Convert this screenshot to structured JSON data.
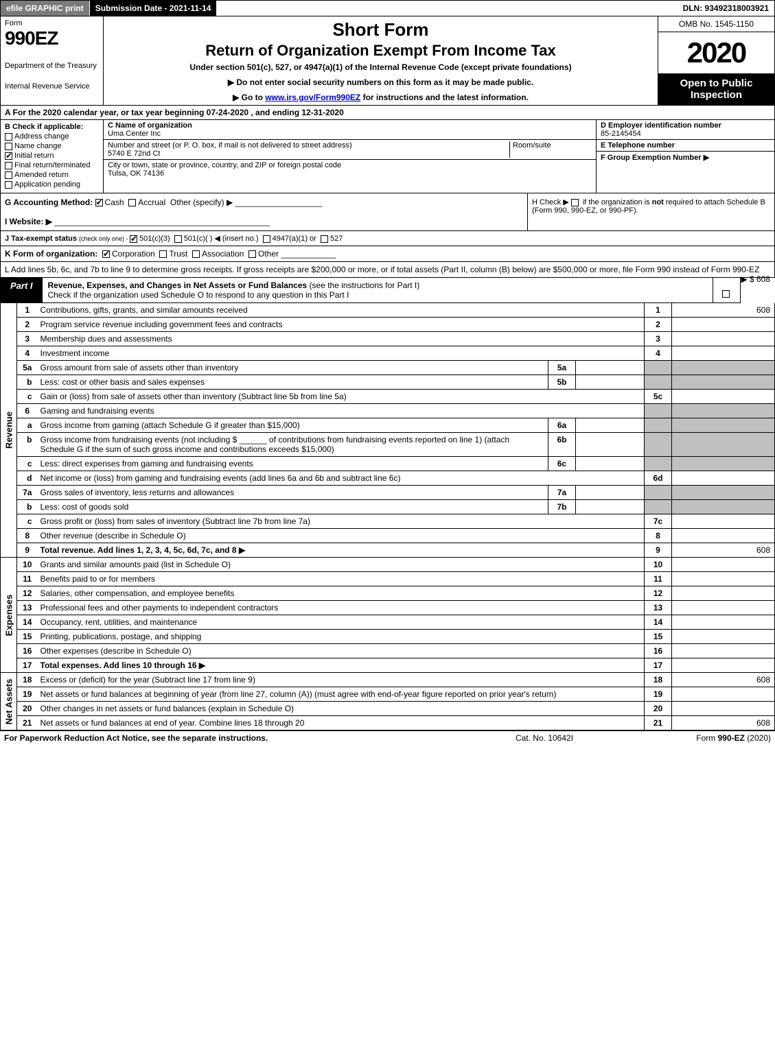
{
  "topbar": {
    "efile": "efile GRAPHIC print",
    "submission": "Submission Date - 2021-11-14",
    "dln": "DLN: 93492318003921"
  },
  "header": {
    "form_word": "Form",
    "form_no": "990EZ",
    "dept1": "Department of the Treasury",
    "dept2": "Internal Revenue Service",
    "short": "Short Form",
    "title2": "Return of Organization Exempt From Income Tax",
    "sub": "Under section 501(c), 527, or 4947(a)(1) of the Internal Revenue Code (except private foundations)",
    "bullet1": "▶ Do not enter social security numbers on this form as it may be made public.",
    "bullet2_pre": "▶ Go to ",
    "bullet2_link": "www.irs.gov/Form990EZ",
    "bullet2_post": " for instructions and the latest information.",
    "omb": "OMB No. 1545-1150",
    "year": "2020",
    "open": "Open to Public Inspection"
  },
  "row_a": "A For the 2020 calendar year, or tax year beginning 07-24-2020 , and ending 12-31-2020",
  "section_b": {
    "head": "B  Check if applicable:",
    "items": [
      {
        "label": "Address change",
        "checked": false
      },
      {
        "label": "Name change",
        "checked": false
      },
      {
        "label": "Initial return",
        "checked": true
      },
      {
        "label": "Final return/terminated",
        "checked": false
      },
      {
        "label": "Amended return",
        "checked": false
      },
      {
        "label": "Application pending",
        "checked": false
      }
    ]
  },
  "section_c": {
    "name_lbl": "C Name of organization",
    "name_val": "Uma Center Inc",
    "addr_lbl": "Number and street (or P. O. box, if mail is not delivered to street address)",
    "room_lbl": "Room/suite",
    "addr_val": "5740 E 72nd Ct",
    "city_lbl": "City or town, state or province, country, and ZIP or foreign postal code",
    "city_val": "Tulsa, OK  74136"
  },
  "section_d": {
    "lbl": "D Employer identification number",
    "val": "85-2145454"
  },
  "section_e": {
    "lbl": "E Telephone number",
    "val": ""
  },
  "section_f": {
    "lbl": "F Group Exemption Number  ▶",
    "val": ""
  },
  "row_g": {
    "lbl": "G Accounting Method:",
    "cash": "Cash",
    "accrual": "Accrual",
    "other": "Other (specify) ▶"
  },
  "row_h": {
    "text1": "H  Check ▶ ",
    "text2": " if the organization is ",
    "not": "not",
    "text3": " required to attach Schedule B",
    "text4": "(Form 990, 990-EZ, or 990-PF)."
  },
  "row_i": {
    "lbl": "I Website: ▶"
  },
  "row_j": {
    "lbl": "J Tax-exempt status",
    "sub": "(check only one) - ",
    "o1": "501(c)(3)",
    "o2": "501(c)(  ) ◀ (insert no.)",
    "o3": "4947(a)(1) or",
    "o4": "527"
  },
  "row_k": {
    "lbl": "K Form of organization:",
    "o1": "Corporation",
    "o2": "Trust",
    "o3": "Association",
    "o4": "Other"
  },
  "row_l": {
    "text": "L Add lines 5b, 6c, and 7b to line 9 to determine gross receipts. If gross receipts are $200,000 or more, or if total assets (Part II, column (B) below) are $500,000 or more, file Form 990 instead of Form 990-EZ",
    "amount": "▶ $ 608"
  },
  "part1": {
    "lbl": "Part I",
    "title": "Revenue, Expenses, and Changes in Net Assets or Fund Balances",
    "sub": " (see the instructions for Part I)",
    "check_text": "Check if the organization used Schedule O to respond to any question in this Part I",
    "check_val": "☐"
  },
  "vlabels": {
    "revenue": "Revenue",
    "expenses": "Expenses",
    "netassets": "Net Assets"
  },
  "lines": {
    "l1": {
      "n": "1",
      "d": "Contributions, gifts, grants, and similar amounts received",
      "num": "1",
      "val": "608"
    },
    "l2": {
      "n": "2",
      "d": "Program service revenue including government fees and contracts",
      "num": "2",
      "val": ""
    },
    "l3": {
      "n": "3",
      "d": "Membership dues and assessments",
      "num": "3",
      "val": ""
    },
    "l4": {
      "n": "4",
      "d": "Investment income",
      "num": "4",
      "val": ""
    },
    "l5a": {
      "n": "5a",
      "d": "Gross amount from sale of assets other than inventory",
      "sub": "5a",
      "subval": ""
    },
    "l5b": {
      "n": "b",
      "d": "Less: cost or other basis and sales expenses",
      "sub": "5b",
      "subval": ""
    },
    "l5c": {
      "n": "c",
      "d": "Gain or (loss) from sale of assets other than inventory (Subtract line 5b from line 5a)",
      "num": "5c",
      "val": ""
    },
    "l6": {
      "n": "6",
      "d": "Gaming and fundraising events"
    },
    "l6a": {
      "n": "a",
      "d": "Gross income from gaming (attach Schedule G if greater than $15,000)",
      "sub": "6a",
      "subval": ""
    },
    "l6b": {
      "n": "b",
      "d1": "Gross income from fundraising events (not including $",
      "d2": "of contributions from fundraising events reported on line 1) (attach Schedule G if the sum of such gross income and contributions exceeds $15,000)",
      "sub": "6b",
      "subval": ""
    },
    "l6c": {
      "n": "c",
      "d": "Less: direct expenses from gaming and fundraising events",
      "sub": "6c",
      "subval": ""
    },
    "l6d": {
      "n": "d",
      "d": "Net income or (loss) from gaming and fundraising events (add lines 6a and 6b and subtract line 6c)",
      "num": "6d",
      "val": ""
    },
    "l7a": {
      "n": "7a",
      "d": "Gross sales of inventory, less returns and allowances",
      "sub": "7a",
      "subval": ""
    },
    "l7b": {
      "n": "b",
      "d": "Less: cost of goods sold",
      "sub": "7b",
      "subval": ""
    },
    "l7c": {
      "n": "c",
      "d": "Gross profit or (loss) from sales of inventory (Subtract line 7b from line 7a)",
      "num": "7c",
      "val": ""
    },
    "l8": {
      "n": "8",
      "d": "Other revenue (describe in Schedule O)",
      "num": "8",
      "val": ""
    },
    "l9": {
      "n": "9",
      "d": "Total revenue. Add lines 1, 2, 3, 4, 5c, 6d, 7c, and 8",
      "arrow": "▶",
      "num": "9",
      "val": "608"
    },
    "l10": {
      "n": "10",
      "d": "Grants and similar amounts paid (list in Schedule O)",
      "num": "10",
      "val": ""
    },
    "l11": {
      "n": "11",
      "d": "Benefits paid to or for members",
      "num": "11",
      "val": ""
    },
    "l12": {
      "n": "12",
      "d": "Salaries, other compensation, and employee benefits",
      "num": "12",
      "val": ""
    },
    "l13": {
      "n": "13",
      "d": "Professional fees and other payments to independent contractors",
      "num": "13",
      "val": ""
    },
    "l14": {
      "n": "14",
      "d": "Occupancy, rent, utilities, and maintenance",
      "num": "14",
      "val": ""
    },
    "l15": {
      "n": "15",
      "d": "Printing, publications, postage, and shipping",
      "num": "15",
      "val": ""
    },
    "l16": {
      "n": "16",
      "d": "Other expenses (describe in Schedule O)",
      "num": "16",
      "val": ""
    },
    "l17": {
      "n": "17",
      "d": "Total expenses. Add lines 10 through 16",
      "arrow": "▶",
      "num": "17",
      "val": ""
    },
    "l18": {
      "n": "18",
      "d": "Excess or (deficit) for the year (Subtract line 17 from line 9)",
      "num": "18",
      "val": "608"
    },
    "l19": {
      "n": "19",
      "d": "Net assets or fund balances at beginning of year (from line 27, column (A)) (must agree with end-of-year figure reported on prior year's return)",
      "num": "19",
      "val": ""
    },
    "l20": {
      "n": "20",
      "d": "Other changes in net assets or fund balances (explain in Schedule O)",
      "num": "20",
      "val": ""
    },
    "l21": {
      "n": "21",
      "d": "Net assets or fund balances at end of year. Combine lines 18 through 20",
      "num": "21",
      "val": "608"
    }
  },
  "footer": {
    "f1": "For Paperwork Reduction Act Notice, see the separate instructions.",
    "f2": "Cat. No. 10642I",
    "f3a": "Form ",
    "f3b": "990-EZ",
    "f3c": " (2020)"
  },
  "colors": {
    "black": "#000000",
    "white": "#ffffff",
    "grey_btn": "#7a7a7a",
    "grey_cell": "#c0c0c0",
    "link": "#0000cc"
  }
}
